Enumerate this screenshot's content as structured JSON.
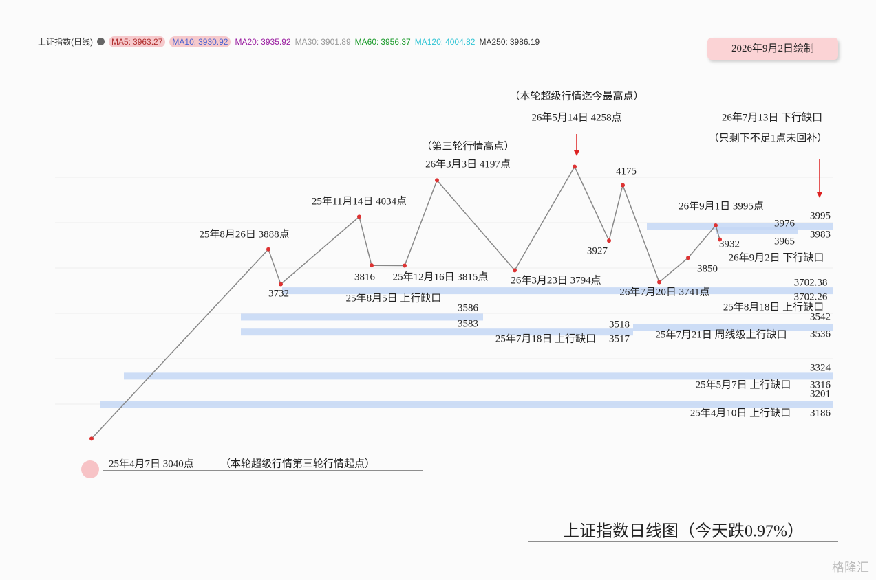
{
  "header": {
    "symbol": "上证指数(日线)",
    "ma": [
      {
        "label": "MA5:",
        "value": 3963.27,
        "color": "#b03030"
      },
      {
        "label": "MA10:",
        "value": 3930.92,
        "color": "#4b63d0"
      },
      {
        "label": "MA20:",
        "value": 3935.92,
        "color": "#9a1ea0"
      },
      {
        "label": "MA30:",
        "value": 3901.89,
        "color": "#999999"
      },
      {
        "label": "MA60:",
        "value": 3956.37,
        "color": "#1a9a2a"
      },
      {
        "label": "MA120:",
        "value": 4004.82,
        "color": "#2fc4d4"
      },
      {
        "label": "MA250:",
        "value": 3986.19,
        "color": "#333333"
      }
    ],
    "drawn_date": "2026年9月2日绘制"
  },
  "chart_data": {
    "type": "annotated-price",
    "title": "上证指数日线图（今天跌0.97%）",
    "line_color": "#888888",
    "gap_color": "#c4d7f4",
    "points": [
      {
        "label": "25年4月7日 3040点",
        "value": 3040,
        "note": "（本轮超级行情第三轮行情起点）"
      },
      {
        "label": "25年8月26日 3888点",
        "value": 3888
      },
      {
        "value": 3732
      },
      {
        "label": "25年11月14日 4034点",
        "value": 4034
      },
      {
        "value": 3816
      },
      {
        "label": "25年12月16日 3815点",
        "value": 3815
      },
      {
        "label": "26年3月3日 4197点",
        "value": 4197,
        "note": "（第三轮行情高点）"
      },
      {
        "label": "26年3月23日 3794点",
        "value": 3794
      },
      {
        "label": "26年5月14日 4258点",
        "value": 4258,
        "note": "（本轮超级行情迄今最高点）"
      },
      {
        "value": 3927
      },
      {
        "value": 4175
      },
      {
        "label": "26年7月20日 3741点",
        "value": 3741
      },
      {
        "value": 3850
      },
      {
        "label": "26年9月1日 3995点",
        "value": 3995
      },
      {
        "value": 3932
      }
    ],
    "gaps": [
      {
        "label": "26年7月13日 下行缺口",
        "note": "（只剩下不足1点未回补）",
        "high": 3995,
        "low": 3983
      },
      {
        "label": "26年9月2日 下行缺口",
        "high": 3976,
        "low": 3965
      },
      {
        "label": "25年8月18日 上行缺口",
        "high": 3702.38,
        "low": 3702.26
      },
      {
        "label": "25年8月5日 上行缺口",
        "high": 3586,
        "low": 3583
      },
      {
        "label": "25年7月18日 上行缺口",
        "high": 3518,
        "low": 3517
      },
      {
        "label": "25年7月21日 周线级上行缺口",
        "high": 3542,
        "low": 3536
      },
      {
        "label": "25年5月7日 上行缺口",
        "high": 3324,
        "low": 3316
      },
      {
        "label": "25年4月10日 上行缺口",
        "high": 3201,
        "low": 3186
      }
    ]
  }
}
